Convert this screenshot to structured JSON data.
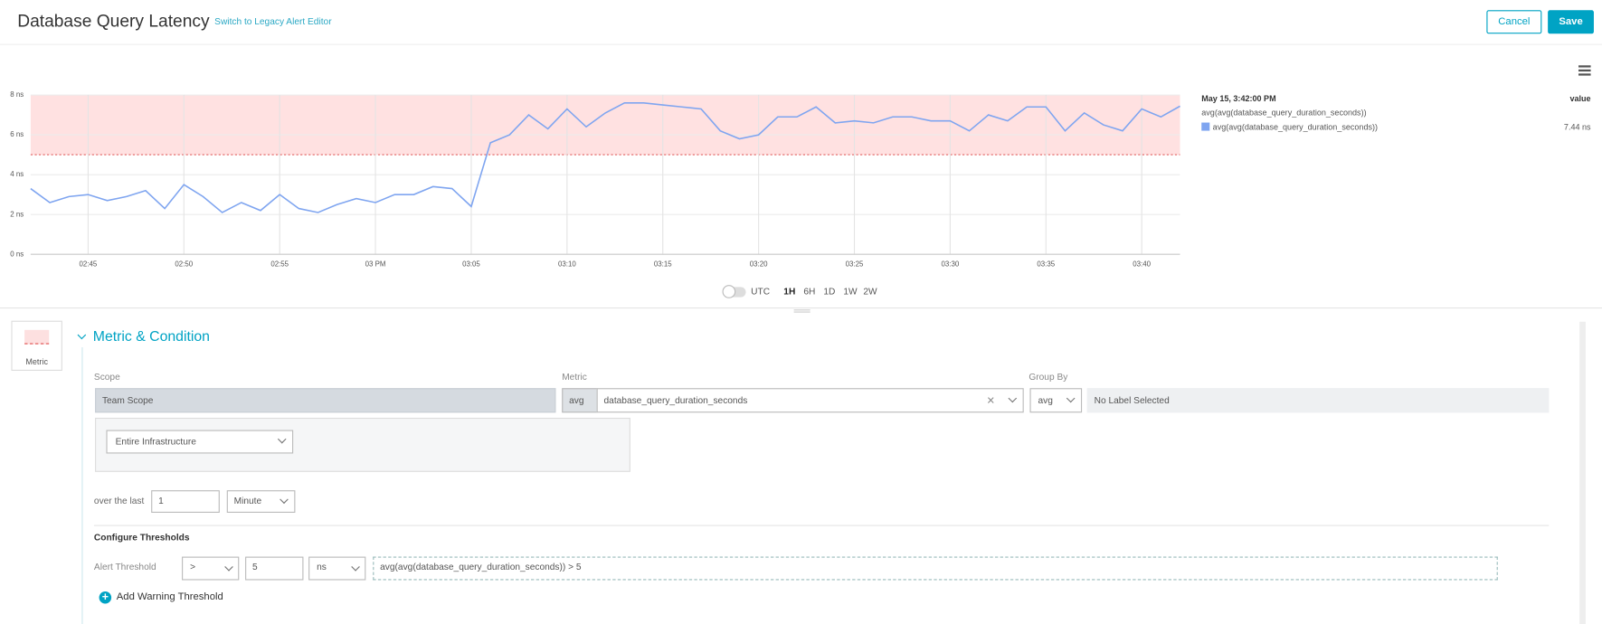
{
  "header": {
    "title": "Database Query Latency",
    "link": "Switch to Legacy Alert Editor",
    "cancel": "Cancel",
    "save": "Save"
  },
  "chart_data": {
    "type": "line",
    "x": [
      "02:42",
      "02:43",
      "02:44",
      "02:45",
      "02:46",
      "02:47",
      "02:48",
      "02:49",
      "02:50",
      "02:51",
      "02:52",
      "02:53",
      "02:54",
      "02:55",
      "02:56",
      "02:57",
      "02:58",
      "02:59",
      "03:00",
      "03:01",
      "03:02",
      "03:03",
      "03:04",
      "03:05",
      "03:06",
      "03:07",
      "03:08",
      "03:09",
      "03:10",
      "03:11",
      "03:12",
      "03:13",
      "03:14",
      "03:15",
      "03:16",
      "03:17",
      "03:18",
      "03:19",
      "03:20",
      "03:21",
      "03:22",
      "03:23",
      "03:24",
      "03:25",
      "03:26",
      "03:27",
      "03:28",
      "03:29",
      "03:30",
      "03:31",
      "03:32",
      "03:33",
      "03:34",
      "03:35",
      "03:36",
      "03:37",
      "03:38",
      "03:39",
      "03:40",
      "03:41",
      "03:42"
    ],
    "series": [
      {
        "name": "avg(avg(database_query_duration_seconds))",
        "color": "#7fa5f0",
        "values": [
          3.3,
          2.6,
          2.9,
          3.0,
          2.7,
          2.9,
          3.2,
          2.3,
          3.5,
          2.9,
          2.1,
          2.6,
          2.2,
          3.0,
          2.3,
          2.1,
          2.5,
          2.8,
          2.6,
          3.0,
          3.0,
          3.4,
          3.3,
          2.4,
          5.6,
          6.0,
          7.0,
          6.3,
          7.3,
          6.4,
          7.1,
          7.6,
          7.6,
          7.5,
          7.4,
          7.3,
          6.2,
          5.8,
          6.0,
          6.9,
          6.9,
          7.4,
          6.6,
          6.7,
          6.6,
          6.9,
          6.9,
          6.7,
          6.7,
          6.2,
          7.0,
          6.7,
          7.4,
          7.4,
          6.2,
          7.1,
          6.5,
          6.2,
          7.3,
          6.9,
          7.44
        ]
      }
    ],
    "ylim": [
      0,
      8
    ],
    "yticks": [
      {
        "value": 0,
        "label": "0 ns"
      },
      {
        "value": 2,
        "label": "2 ns"
      },
      {
        "value": 4,
        "label": "4 ns"
      },
      {
        "value": 6,
        "label": "6 ns"
      },
      {
        "value": 8,
        "label": "8 ns"
      }
    ],
    "xticks": [
      "02:45",
      "02:50",
      "02:55",
      {
        "value": "03:00",
        "label": "03 PM"
      },
      "03:05",
      "03:10",
      "03:15",
      "03:20",
      "03:25",
      "03:30",
      "03:35",
      "03:40"
    ],
    "threshold": 5,
    "grid": true
  },
  "legend": {
    "time": "May 15, 3:42:00 PM",
    "value_header": "value",
    "query": "avg(avg(database_query_duration_seconds))",
    "value": "7.44 ns"
  },
  "time_controls": {
    "utc": "UTC",
    "ranges": [
      "1H",
      "6H",
      "1D",
      "1W",
      "2W"
    ]
  },
  "section": {
    "icon_label": "Metric",
    "title": "Metric & Condition",
    "scope_label": "Scope",
    "scope": "Team Scope",
    "scope_filter": "Entire Infrastructure",
    "metric_label": "Metric",
    "aggregation": "avg",
    "metric": "database_query_duration_seconds",
    "group_by_label": "Group By",
    "group_aggregation": "avg",
    "group_label": "No Label Selected",
    "over_label": "over the last",
    "over_value": "1",
    "over_unit": "Minute",
    "thresholds_title": "Configure Thresholds",
    "alert_label": "Alert Threshold",
    "operator": ">",
    "alert_value": "5",
    "alert_unit": "ns",
    "expression": "avg(avg(database_query_duration_seconds)) > 5",
    "add_warning": "Add Warning Threshold"
  }
}
